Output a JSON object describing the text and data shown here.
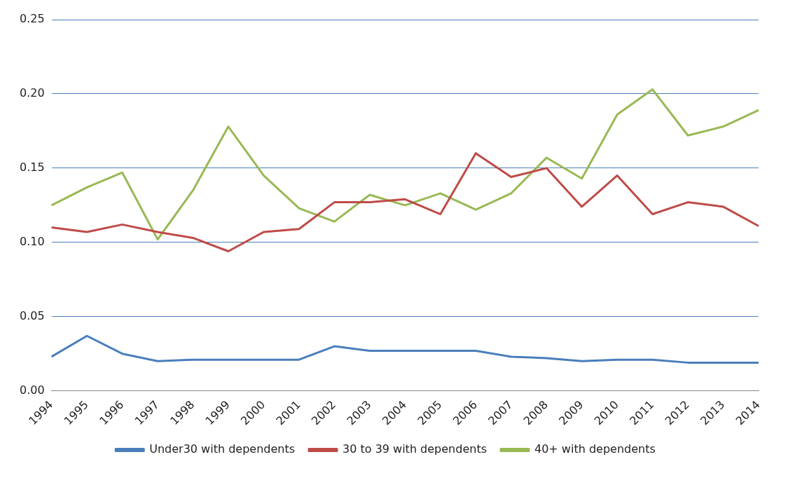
{
  "chart_data": {
    "type": "line",
    "categories": [
      "1994",
      "1995",
      "1996",
      "1997",
      "1998",
      "1999",
      "2000",
      "2001",
      "2002",
      "2003",
      "2004",
      "2005",
      "2006",
      "2007",
      "2008",
      "2009",
      "2010",
      "2011",
      "2012",
      "2013",
      "2014"
    ],
    "series": [
      {
        "name": "Under30 with dependents",
        "color": "#4a7ebb",
        "values": [
          0.023,
          0.037,
          0.025,
          0.02,
          0.021,
          0.021,
          0.021,
          0.021,
          0.03,
          0.027,
          0.027,
          0.027,
          0.027,
          0.023,
          0.022,
          0.02,
          0.021,
          0.021,
          0.019,
          0.019,
          0.019
        ]
      },
      {
        "name": "30 to 39 with dependents",
        "color": "#be4b48",
        "values": [
          0.11,
          0.107,
          0.112,
          0.107,
          0.103,
          0.094,
          0.107,
          0.109,
          0.127,
          0.127,
          0.129,
          0.119,
          0.16,
          0.144,
          0.15,
          0.124,
          0.145,
          0.119,
          0.127,
          0.124,
          0.111
        ]
      },
      {
        "name": "40+ with dependents",
        "color": "#98b954",
        "values": [
          0.125,
          0.137,
          0.147,
          0.102,
          0.135,
          0.178,
          0.145,
          0.123,
          0.114,
          0.132,
          0.125,
          0.133,
          0.122,
          0.133,
          0.157,
          0.143,
          0.186,
          0.203,
          0.172,
          0.178,
          0.189
        ]
      }
    ],
    "ylim": [
      0,
      0.25
    ],
    "yticks": [
      {
        "value": 0,
        "label": "0.00"
      },
      {
        "value": 0.05,
        "label": "0.05"
      },
      {
        "value": 0.1,
        "label": "0.10"
      },
      {
        "value": 0.15,
        "label": "0.15"
      },
      {
        "value": 0.2,
        "label": "0.20"
      },
      {
        "value": 0.25,
        "label": "0.25"
      }
    ],
    "grid": "y",
    "legend": "bottom",
    "marker": "none",
    "line_style": "solid"
  }
}
